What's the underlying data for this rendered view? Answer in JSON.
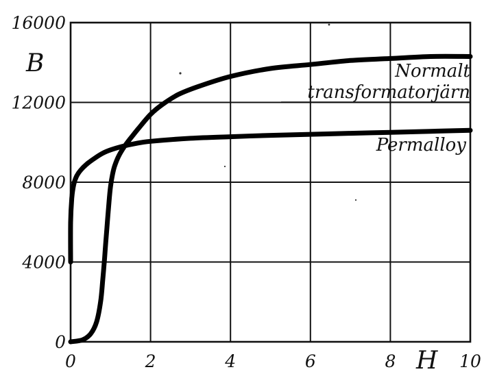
{
  "chart_data": {
    "type": "line",
    "ylabel": "B",
    "xlabel": "H",
    "xlim": [
      0,
      10
    ],
    "ylim": [
      0,
      16000
    ],
    "x_ticks": [
      0,
      2,
      4,
      6,
      8,
      10
    ],
    "y_ticks": [
      0,
      4000,
      8000,
      12000,
      16000
    ],
    "x_tick_labels": [
      "0",
      "2",
      "4",
      "6",
      "8",
      "10"
    ],
    "y_tick_labels": [
      "0",
      "4000",
      "8000",
      "12000",
      "16000"
    ],
    "grid": true,
    "series": [
      {
        "name": "Normalt transformatorjärn",
        "name_lines": [
          "Normalt",
          "transformatorjärn"
        ],
        "x": [
          0,
          0.3,
          0.5,
          0.65,
          0.75,
          0.8,
          0.85,
          0.88,
          0.92,
          0.96,
          1.0,
          1.05,
          1.1,
          1.2,
          1.35,
          1.5,
          1.7,
          2.0,
          2.3,
          2.7,
          3.2,
          4.0,
          5.0,
          6.0,
          7.0,
          8.0,
          9.0,
          10.0
        ],
        "y": [
          0,
          100,
          400,
          1000,
          2000,
          3000,
          4200,
          5000,
          6000,
          7000,
          7800,
          8400,
          8800,
          9300,
          9800,
          10200,
          10700,
          11400,
          11900,
          12400,
          12800,
          13300,
          13700,
          13900,
          14100,
          14200,
          14300,
          14300
        ]
      },
      {
        "name": "Permalloy",
        "name_lines": [
          "Permalloy"
        ],
        "x": [
          0,
          0,
          0.03,
          0.08,
          0.15,
          0.25,
          0.4,
          0.6,
          0.8,
          1.0,
          1.3,
          1.6,
          2.0,
          3.0,
          4.0,
          5.0,
          6.0,
          7.0,
          8.0,
          9.0,
          10.0
        ],
        "y": [
          4000,
          6000,
          7200,
          7900,
          8300,
          8600,
          8900,
          9200,
          9450,
          9620,
          9800,
          9930,
          10050,
          10200,
          10280,
          10350,
          10400,
          10450,
          10500,
          10550,
          10600
        ]
      }
    ]
  }
}
